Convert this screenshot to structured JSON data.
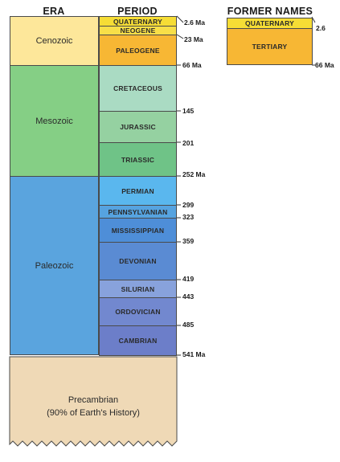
{
  "headers": {
    "era": "ERA",
    "period": "PERIOD",
    "former_names": "FORMER NAMES"
  },
  "eras": [
    {
      "label": "Cenozoic",
      "color": "#fde79a"
    },
    {
      "label": "Mesozoic",
      "color": "#85cf85"
    },
    {
      "label": "Paleozoic",
      "color": "#5aa4de"
    },
    {
      "label": "Precambrian\n(90% of Earth's History)",
      "color": "#efd9b6"
    }
  ],
  "periods": [
    {
      "label": "QUATERNARY",
      "color": "#f6dd35"
    },
    {
      "label": "NEOGENE",
      "color": "#f8df48"
    },
    {
      "label": "PALEOGENE",
      "color": "#f7b734"
    },
    {
      "label": "CRETACEOUS",
      "color": "#aadbc3"
    },
    {
      "label": "JURASSIC",
      "color": "#95d1a1"
    },
    {
      "label": "TRIASSIC",
      "color": "#6fc387"
    },
    {
      "label": "PERMIAN",
      "color": "#5ab7ee"
    },
    {
      "label": "PENNSYLVANIAN",
      "color": "#56a3e0"
    },
    {
      "label": "MISSISSIPPIAN",
      "color": "#4e8ed8"
    },
    {
      "label": "DEVONIAN",
      "color": "#5a8bd3"
    },
    {
      "label": "SILURIAN",
      "color": "#88a2dc"
    },
    {
      "label": "ORDOVICIAN",
      "color": "#7288cf"
    },
    {
      "label": "CAMBRIAN",
      "color": "#6c7ec9"
    }
  ],
  "boundaries": [
    "2.6 Ma",
    "23 Ma",
    "66 Ma",
    "145",
    "201",
    "252 Ma",
    "299",
    "323",
    "359",
    "419",
    "443",
    "485",
    "541 Ma"
  ],
  "former_names": {
    "items": [
      {
        "label": "QUATERNARY",
        "color": "#f6dd35"
      },
      {
        "label": "TERTIARY",
        "color": "#f7b734"
      }
    ],
    "ticks": [
      "2.6",
      "66 Ma"
    ]
  }
}
